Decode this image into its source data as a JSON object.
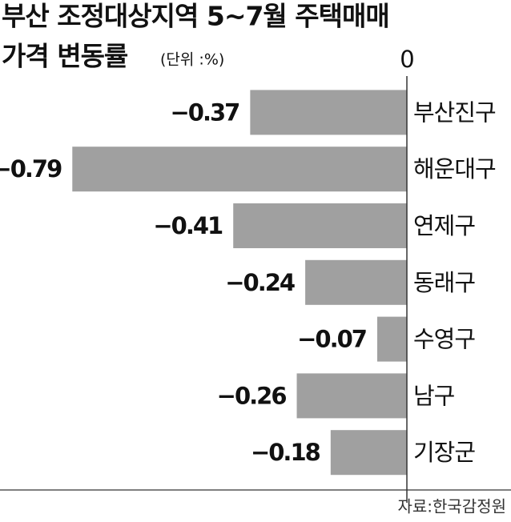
{
  "chart_data": {
    "type": "bar",
    "orientation": "horizontal",
    "title_lines": [
      "부산 조정대상지역 5~7월 주택매매",
      "가격 변동률"
    ],
    "unit_note": "(단위 :%)",
    "source": "자료:한국감정원",
    "categories": [
      "부산진구",
      "해운대구",
      "연제구",
      "동래구",
      "수영구",
      "남구",
      "기장군"
    ],
    "values": [
      -0.37,
      -0.79,
      -0.41,
      -0.24,
      -0.07,
      -0.26,
      -0.18
    ],
    "value_labels": [
      "−0.37",
      "−0.79",
      "−0.41",
      "−0.24",
      "−0.07",
      "−0.26",
      "−0.18"
    ],
    "color": "#a0a0a0",
    "xlim": [
      -0.8,
      0
    ],
    "xticks": [
      0
    ]
  }
}
